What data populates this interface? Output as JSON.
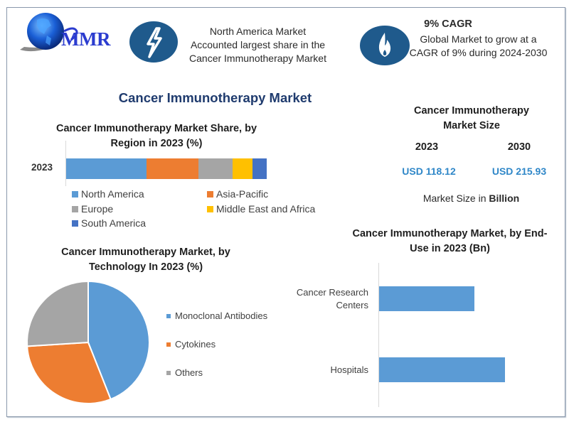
{
  "header": {
    "logo_text": "MMR",
    "highlight_1": {
      "icon": "lightning-icon",
      "lines": [
        "North America Market",
        "Accounted largest share in the",
        "Cancer Immunotherapy Market"
      ]
    },
    "highlight_2": {
      "icon": "flame-icon",
      "title": "9% CAGR",
      "lines": [
        "Global Market to grow at a",
        "CAGR of 9% during 2024-2030"
      ]
    }
  },
  "main_title": "Cancer Immunotherapy Market",
  "market_size": {
    "title_lines": [
      "Cancer Immunotherapy",
      "Market Size"
    ],
    "years": [
      "2023",
      "2030"
    ],
    "values": [
      "USD 118.12",
      "USD 215.93"
    ],
    "unit_prefix": "Market Size in ",
    "unit_bold": "Billion"
  },
  "colors": {
    "icon_circle": "#1f5a8c",
    "title_blue": "#1f3b6e",
    "value_blue": "#2f87c8",
    "north_america": "#5b9bd5",
    "asia_pacific": "#ed7d31",
    "europe": "#a5a5a5",
    "mea": "#ffc000",
    "south_america": "#4472c4"
  },
  "chart_data": [
    {
      "type": "bar",
      "orientation": "horizontal-stacked",
      "title": "Cancer Immunotherapy Market Share, by Region in 2023 (%)",
      "title_lines": [
        "Cancer Immunotherapy Market Share, by",
        "Region in 2023 (%)"
      ],
      "categories": [
        "2023"
      ],
      "series": [
        {
          "name": "North America",
          "values": [
            40
          ],
          "color": "#5b9bd5"
        },
        {
          "name": "Asia-Pacific",
          "values": [
            26
          ],
          "color": "#ed7d31"
        },
        {
          "name": "Europe",
          "values": [
            17
          ],
          "color": "#a5a5a5"
        },
        {
          "name": "Middle East and Africa",
          "values": [
            10
          ],
          "color": "#ffc000"
        },
        {
          "name": "South America",
          "values": [
            7
          ],
          "color": "#4472c4"
        }
      ],
      "xlabel": "",
      "ylabel": "",
      "legend_position": "bottom",
      "grid": false
    },
    {
      "type": "pie",
      "title": "Cancer Immunotherapy Market, by Technology In 2023 (%)",
      "title_lines": [
        "Cancer Immunotherapy Market, by",
        "Technology In 2023 (%)"
      ],
      "categories": [
        "Monoclonal Antibodies",
        "Cytokines",
        "Others"
      ],
      "values": [
        44,
        30,
        26
      ],
      "colors": [
        "#5b9bd5",
        "#ed7d31",
        "#a5a5a5"
      ],
      "legend_position": "right"
    },
    {
      "type": "bar",
      "orientation": "horizontal",
      "title": "Cancer Immunotherapy Market, by End-Use in 2023 (Bn)",
      "title_lines": [
        "Cancer Immunotherapy Market, by End-",
        "Use in 2023 (Bn)"
      ],
      "categories": [
        "Cancer Research Centers",
        "Hospitals"
      ],
      "category_label_lines": [
        [
          "Cancer Research",
          "Centers"
        ],
        [
          "Hospitals"
        ]
      ],
      "values": [
        43,
        57
      ],
      "value_note": "relative bar lengths (no axis ticks shown)",
      "color": "#5b9bd5",
      "xlabel": "",
      "ylabel": "",
      "grid": false
    }
  ]
}
